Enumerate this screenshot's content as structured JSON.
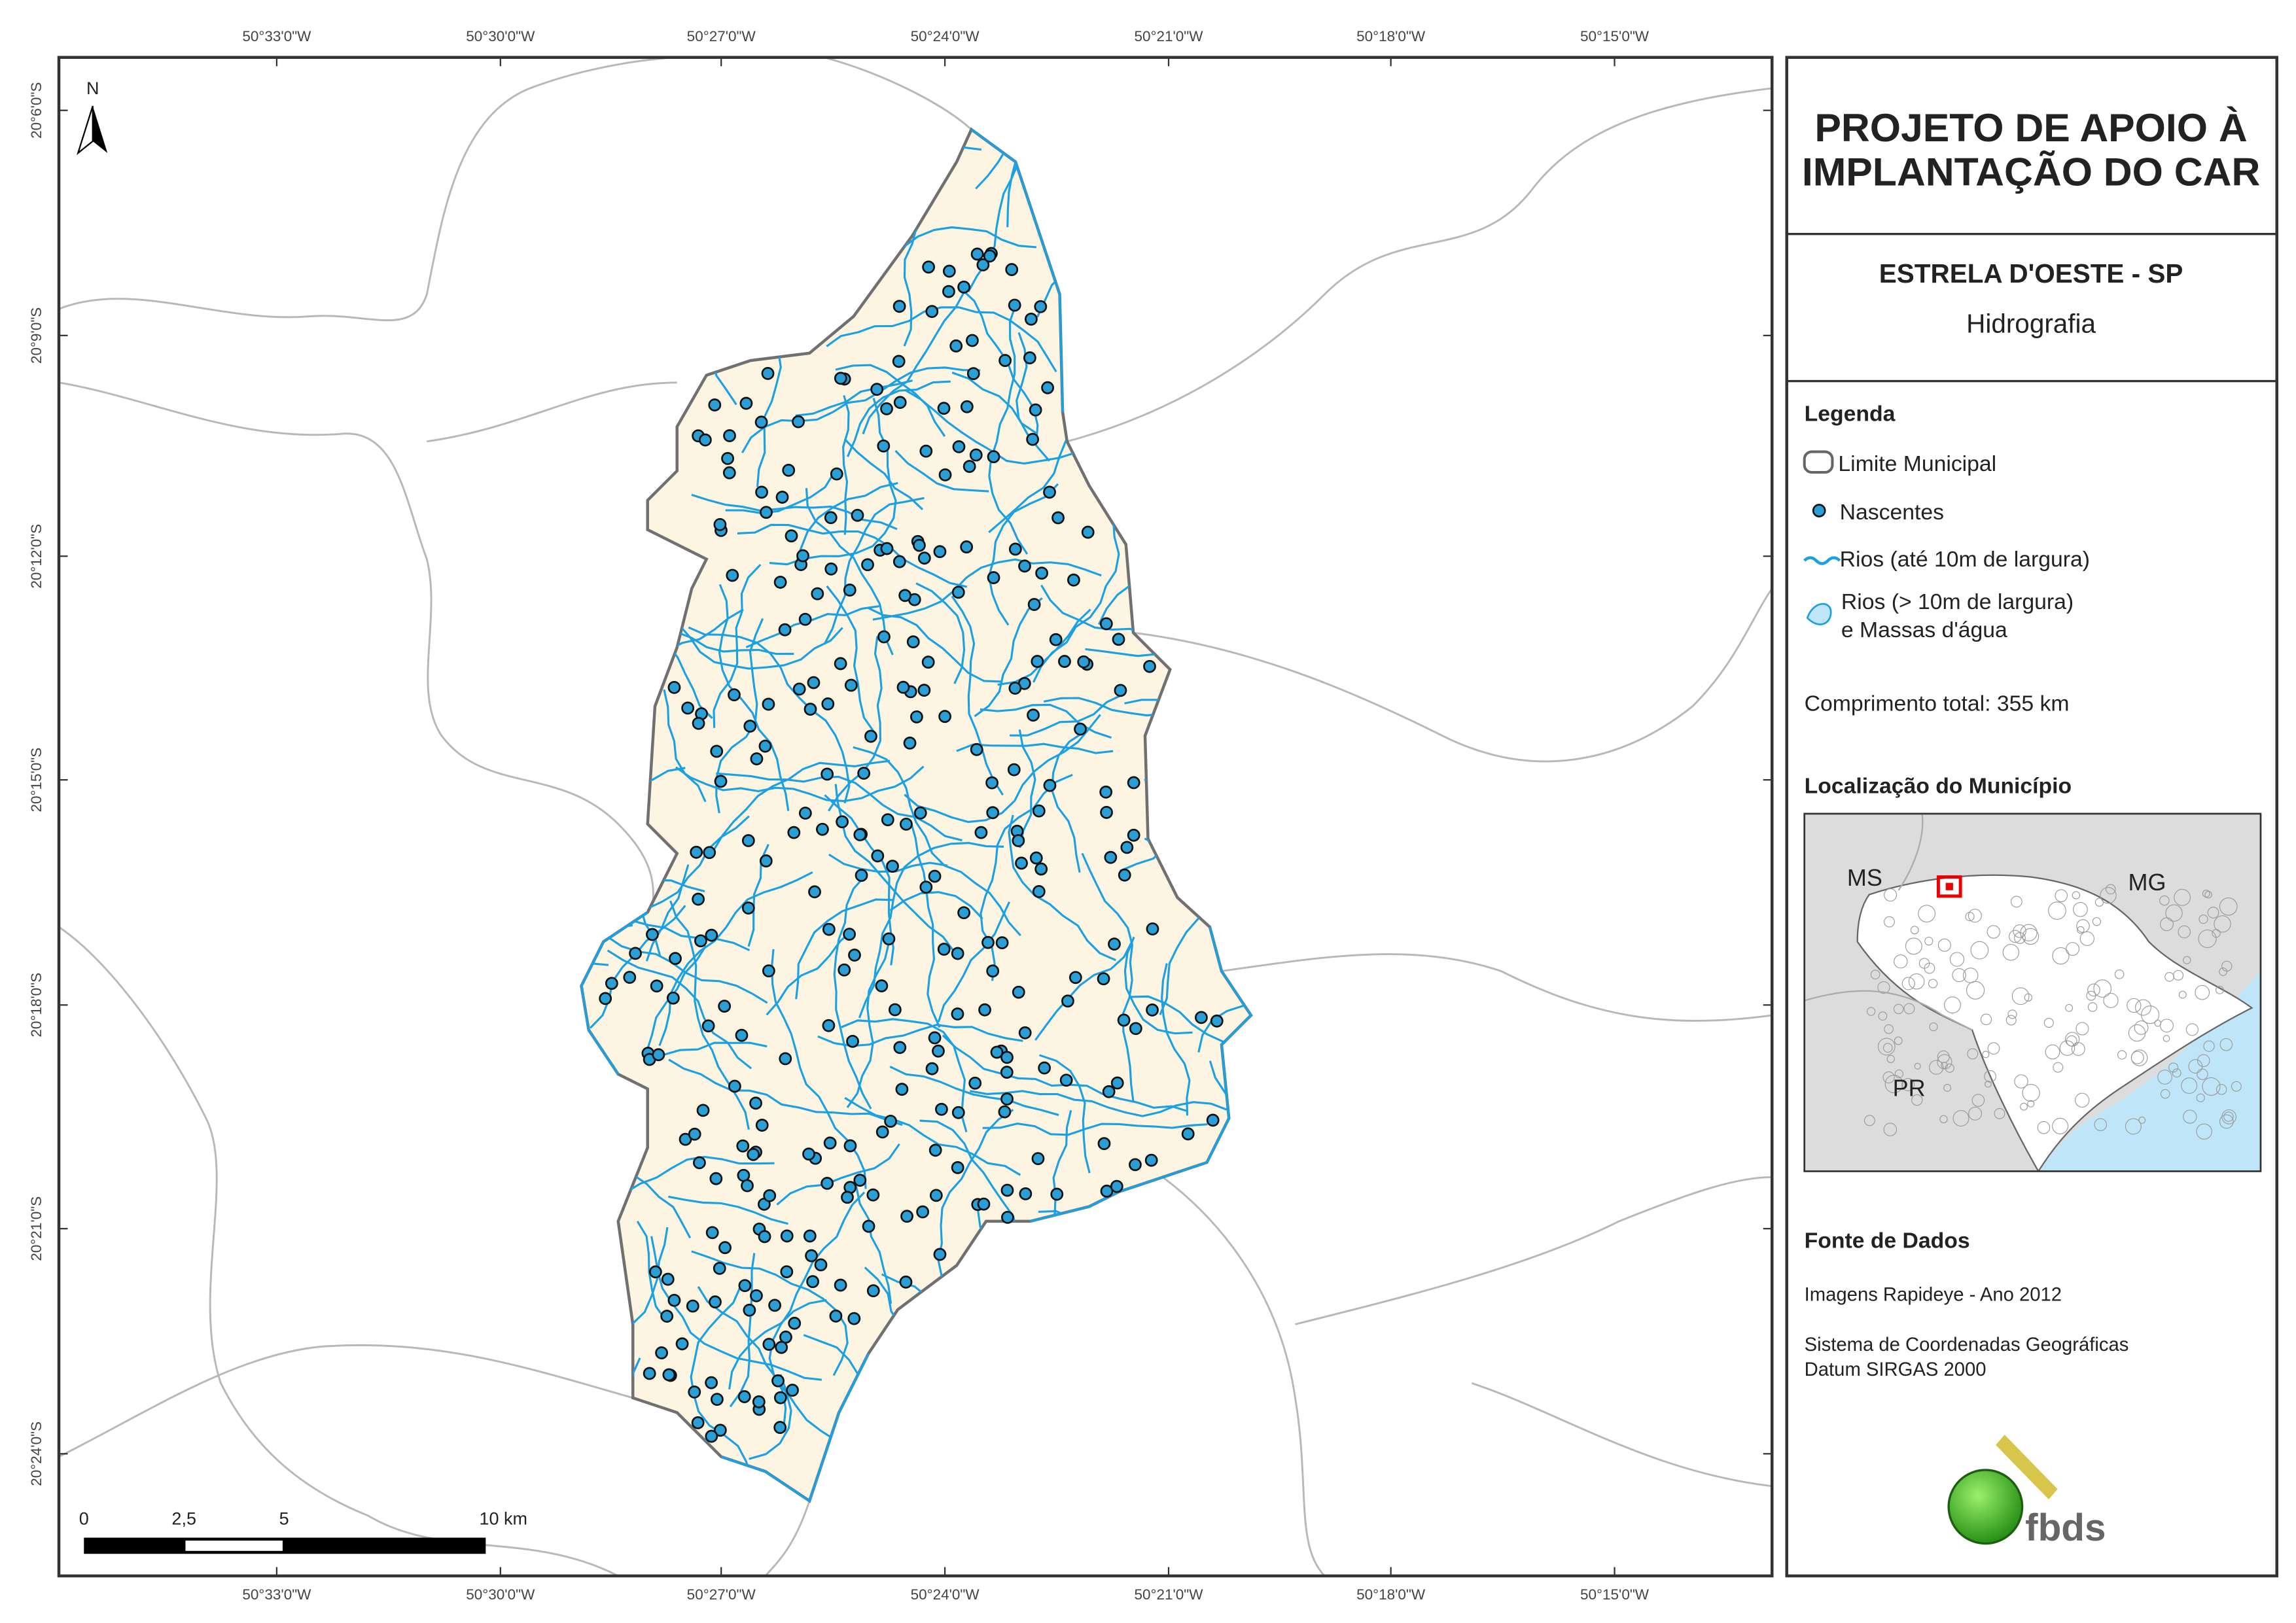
{
  "map": {
    "lon_labels": [
      "50°33'0\"W",
      "50°30'0\"W",
      "50°27'0\"W",
      "50°24'0\"W",
      "50°21'0\"W",
      "50°18'0\"W",
      "50°15'0\"W"
    ],
    "lat_labels": [
      "20°6'0\"S",
      "20°9'0\"S",
      "20°12'0\"S",
      "20°15'0\"S",
      "20°18'0\"S",
      "20°21'0\"S",
      "20°24'0\"S"
    ],
    "north": "N",
    "scale_labels": [
      "0",
      "2,5",
      "5",
      "10 km"
    ]
  },
  "panel": {
    "title": [
      "PROJETO DE APOIO À",
      "IMPLANTAÇÃO DO CAR"
    ],
    "municipality": "ESTRELA D'OESTE - SP",
    "theme": "Hidrografia",
    "legend_title": "Legenda",
    "legend": [
      "Limite Municipal",
      "Nascentes",
      "Rios (até 10m de largura)",
      [
        "Rios (> 10m de largura)",
        "e Massas d'água"
      ]
    ],
    "total_length": "Comprimento total:  355 km",
    "location_title": "Localização do Município",
    "inset_labels": [
      "MS",
      "MG",
      "PR"
    ],
    "source_title": "Fonte de Dados",
    "sources": [
      "Imagens Rapideye - Ano 2012",
      "Sistema de Coordenadas Geográficas",
      "Datum SIRGAS 2000"
    ],
    "logo": "fbds"
  }
}
